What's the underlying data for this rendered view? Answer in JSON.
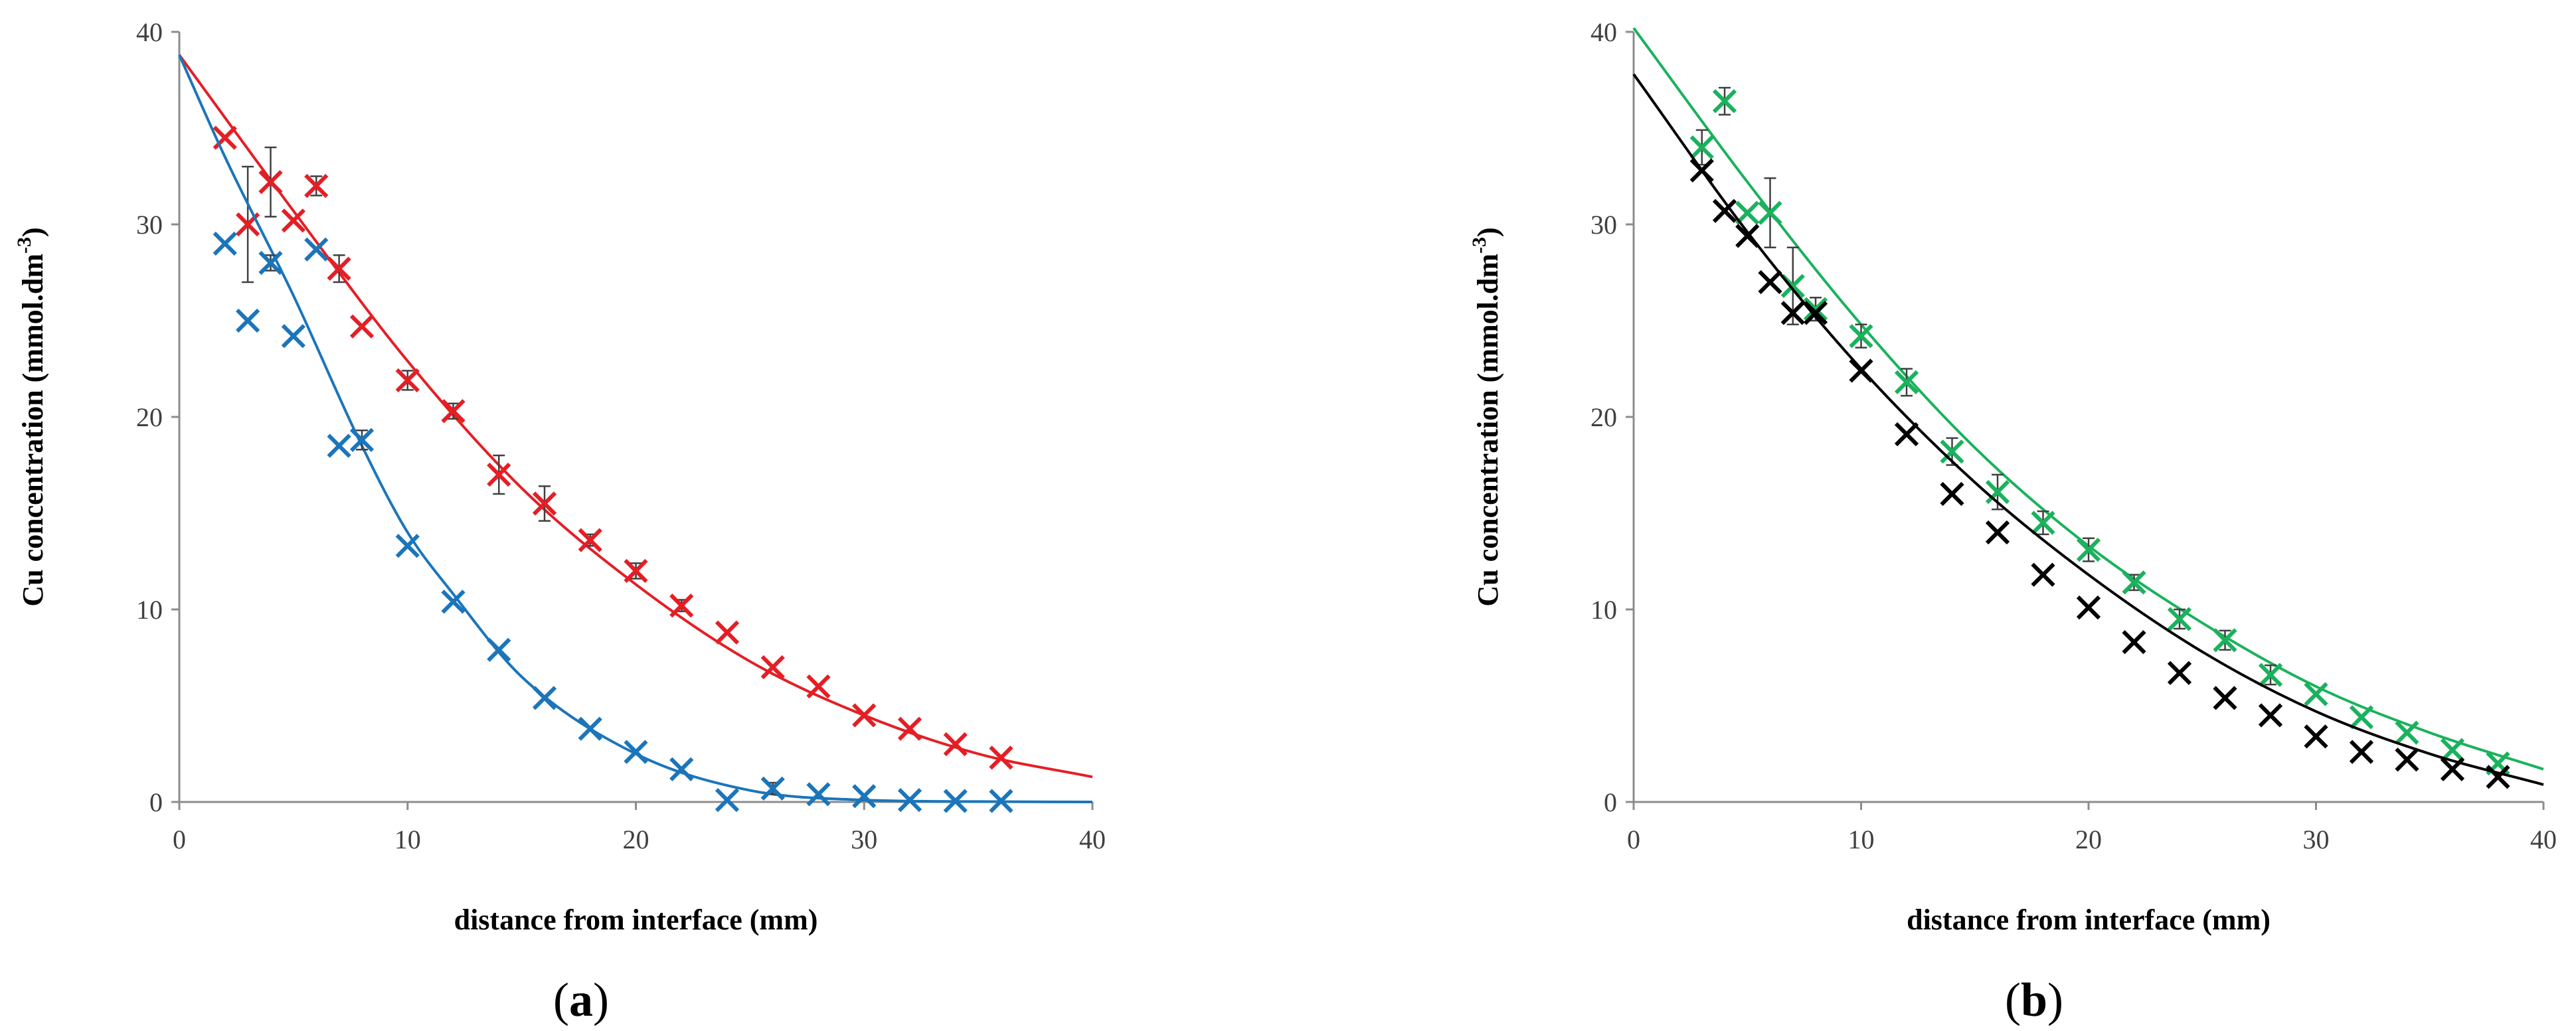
{
  "chart_data": [
    {
      "type": "scatter",
      "panel_label": "(a)",
      "panel_letter": "a",
      "xlabel": "distance from interface (mm)",
      "ylabel_main": "Cu concentration (mmol.dm",
      "ylabel_sup": "-3",
      "ylabel_end": ")",
      "xlim": [
        0,
        40
      ],
      "ylim": [
        0,
        40
      ],
      "xticks": [
        "0",
        "10",
        "20",
        "30",
        "40"
      ],
      "yticks": [
        "0",
        "10",
        "20",
        "30",
        "40"
      ],
      "grid": false,
      "series": [
        {
          "color": "#e51e25",
          "x": [
            2,
            3,
            4,
            5,
            6,
            7,
            8,
            10,
            12,
            14,
            16,
            18,
            20,
            22,
            24,
            26,
            28,
            30,
            32,
            34,
            36
          ],
          "y": [
            34.5,
            30.0,
            32.2,
            30.2,
            32.0,
            27.7,
            24.7,
            21.9,
            20.3,
            17.0,
            15.5,
            13.6,
            12.0,
            10.2,
            8.8,
            7.0,
            6.0,
            4.5,
            3.8,
            3.0,
            2.3
          ],
          "err": [
            0,
            3.0,
            1.8,
            0,
            0.5,
            0.7,
            0,
            0.5,
            0.4,
            1.0,
            0.9,
            0.3,
            0.4,
            0.3,
            0,
            0,
            0,
            0,
            0,
            0,
            0
          ],
          "fit_x": [
            0,
            5,
            10,
            15,
            20,
            25,
            30,
            35,
            40
          ],
          "fit_y": [
            38.8,
            30.7,
            22.9,
            16.3,
            11.3,
            7.3,
            4.5,
            2.5,
            1.3
          ]
        },
        {
          "color": "#1b75bb",
          "x": [
            2,
            3,
            4,
            5,
            6,
            7,
            8,
            10,
            12,
            14,
            16,
            18,
            20,
            22,
            24,
            26,
            28,
            30,
            32,
            34,
            36
          ],
          "y": [
            29.0,
            25.0,
            28.0,
            24.2,
            28.7,
            18.5,
            18.8,
            13.3,
            10.4,
            7.9,
            5.4,
            3.8,
            2.6,
            1.7,
            0.1,
            0.7,
            0.4,
            0.3,
            0.1,
            0.05,
            0.05
          ],
          "err": [
            0,
            0,
            0.4,
            0,
            0,
            0,
            0.5,
            0,
            0,
            0,
            0,
            0,
            0,
            0,
            0,
            0.3,
            0,
            0,
            0,
            0,
            0
          ],
          "fit_x": [
            0,
            2,
            5,
            8,
            10,
            12,
            15,
            20,
            25,
            30,
            35,
            40
          ],
          "fit_y": [
            38.8,
            33.5,
            26.3,
            18.5,
            14.0,
            10.8,
            6.5,
            2.5,
            0.6,
            0.1,
            0.02,
            0.0
          ]
        }
      ]
    },
    {
      "type": "scatter",
      "panel_label": "(b)",
      "panel_letter": "b",
      "xlabel": "distance from interface (mm)",
      "ylabel_main": "Cu concentration (mmol.dm",
      "ylabel_sup": "-3",
      "ylabel_end": ")",
      "xlim": [
        0,
        40
      ],
      "ylim": [
        0,
        40
      ],
      "xticks": [
        "0",
        "10",
        "20",
        "30",
        "40"
      ],
      "yticks": [
        "0",
        "10",
        "20",
        "30",
        "40"
      ],
      "grid": false,
      "series": [
        {
          "color": "#1ab25c",
          "x": [
            3,
            4,
            5,
            6,
            7,
            8,
            10,
            12,
            14,
            16,
            18,
            20,
            22,
            24,
            26,
            28,
            30,
            32,
            34,
            36,
            38
          ],
          "y": [
            34.0,
            36.4,
            30.6,
            30.6,
            26.8,
            25.6,
            24.2,
            21.8,
            18.2,
            16.1,
            14.5,
            13.1,
            11.4,
            9.5,
            8.4,
            6.6,
            5.6,
            4.4,
            3.6,
            2.7,
            2.0
          ],
          "err": [
            0.9,
            0.7,
            0,
            1.8,
            2.0,
            0.6,
            0.6,
            0.7,
            0.7,
            0.9,
            0.6,
            0.6,
            0.4,
            0.5,
            0.5,
            0.5,
            0,
            0,
            0,
            0,
            0
          ],
          "fit_x": [
            0,
            5,
            10,
            15,
            20,
            25,
            30,
            35,
            40
          ],
          "fit_y": [
            40.2,
            32.2,
            24.8,
            18.4,
            13.3,
            9.3,
            6.0,
            3.6,
            1.7
          ]
        },
        {
          "color": "#000000",
          "x": [
            3,
            4,
            5,
            6,
            7,
            8,
            10,
            12,
            14,
            16,
            18,
            20,
            22,
            24,
            26,
            28,
            30,
            32,
            34,
            36,
            38
          ],
          "y": [
            32.8,
            30.7,
            29.4,
            27.0,
            25.4,
            25.4,
            22.4,
            19.1,
            16.0,
            14.0,
            11.8,
            10.1,
            8.3,
            6.7,
            5.4,
            4.5,
            3.4,
            2.6,
            2.2,
            1.7,
            1.3
          ],
          "err": [
            0,
            0,
            0,
            0,
            0,
            0,
            0,
            0,
            0,
            0,
            0,
            0,
            0,
            0,
            0,
            0,
            0,
            0,
            0,
            0,
            0
          ],
          "fit_x": [
            0,
            5,
            10,
            15,
            20,
            25,
            30,
            35,
            40
          ],
          "fit_y": [
            37.8,
            29.6,
            22.5,
            16.6,
            11.8,
            7.8,
            4.7,
            2.5,
            0.9
          ]
        }
      ]
    }
  ]
}
